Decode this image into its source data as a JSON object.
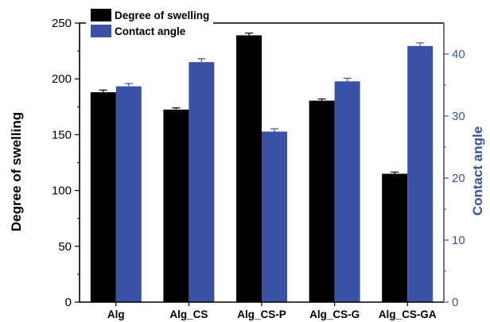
{
  "chart_data": {
    "type": "bar",
    "categories": [
      "Alg",
      "Alg_CS",
      "Alg_CS-P",
      "Alg_CS-G",
      "Alg_CS-GA"
    ],
    "series": [
      {
        "name": "Degree of swelling",
        "axis": "left",
        "color": "#000000",
        "values": [
          188,
          172.5,
          239,
          180.5,
          115
        ],
        "errors": [
          2,
          1.5,
          2,
          1.5,
          1.5
        ]
      },
      {
        "name": "Contact angle",
        "axis": "right",
        "color": "#3a52a6",
        "values": [
          34.8,
          38.7,
          27.5,
          35.6,
          41.3
        ],
        "errors": [
          0.45,
          0.55,
          0.45,
          0.5,
          0.5
        ]
      }
    ],
    "ylabel": "Degree of swelling",
    "ylabel_right": "Contact angle",
    "ylim": [
      0,
      250
    ],
    "ylim_right": [
      0,
      45
    ],
    "yticks": [
      0,
      50,
      100,
      150,
      200,
      250
    ],
    "yticks_right": [
      0,
      10,
      20,
      30,
      40
    ],
    "legend_position": "top-left",
    "grid": false
  }
}
